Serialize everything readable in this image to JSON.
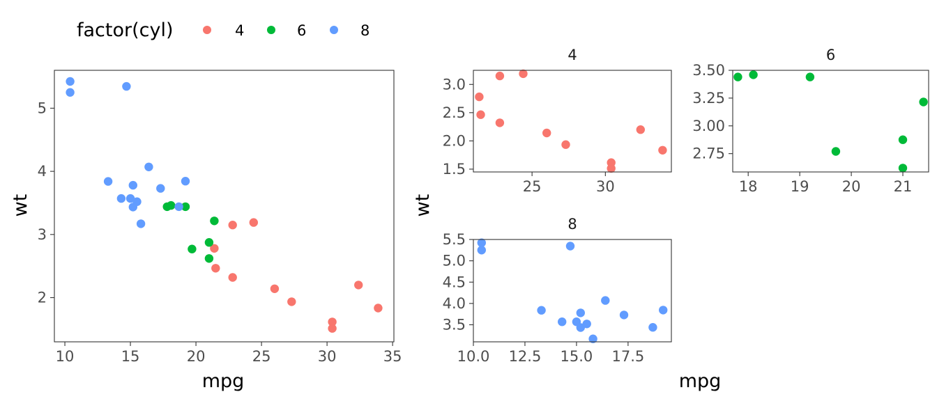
{
  "colors": {
    "4": "#F8766D",
    "6": "#00BA38",
    "8": "#619CFF"
  },
  "legend": {
    "title": "factor(cyl)",
    "items": [
      {
        "label": "4",
        "color": "#F8766D"
      },
      {
        "label": "6",
        "color": "#00BA38"
      },
      {
        "label": "8",
        "color": "#619CFF"
      }
    ],
    "position": "top-left"
  },
  "chart_data": [
    {
      "type": "scatter",
      "panel": "main",
      "strip": "",
      "xlabel": "mpg",
      "ylabel": "wt",
      "xlim": [
        9.2,
        35.1
      ],
      "ylim": [
        1.3,
        5.6
      ],
      "xticks": [
        10,
        15,
        20,
        25,
        30,
        35
      ],
      "yticks": [
        2,
        3,
        4,
        5
      ],
      "xtick_labels": [
        "10",
        "15",
        "20",
        "25",
        "30",
        "35"
      ],
      "ytick_labels": [
        "2",
        "3",
        "4",
        "5"
      ],
      "grid": false,
      "series": [
        {
          "name": "4",
          "color": "#F8766D",
          "points": [
            [
              22.8,
              3.15
            ],
            [
              24.4,
              3.19
            ],
            [
              21.4,
              2.78
            ],
            [
              22.8,
              2.32
            ],
            [
              21.5,
              2.465
            ],
            [
              26.0,
              2.14
            ],
            [
              27.3,
              1.935
            ],
            [
              32.4,
              2.2
            ],
            [
              33.9,
              1.835
            ],
            [
              30.4,
              1.615
            ],
            [
              30.4,
              1.513
            ]
          ]
        },
        {
          "name": "6",
          "color": "#00BA38",
          "points": [
            [
              21.4,
              3.215
            ],
            [
              21.0,
              2.875
            ],
            [
              21.0,
              2.62
            ],
            [
              19.7,
              2.77
            ],
            [
              18.1,
              3.46
            ],
            [
              17.8,
              3.44
            ],
            [
              19.2,
              3.44
            ]
          ]
        },
        {
          "name": "8",
          "color": "#619CFF",
          "points": [
            [
              10.4,
              5.424
            ],
            [
              10.4,
              5.25
            ],
            [
              14.7,
              5.345
            ],
            [
              16.4,
              4.07
            ],
            [
              13.3,
              3.84
            ],
            [
              19.2,
              3.845
            ],
            [
              15.2,
              3.78
            ],
            [
              17.3,
              3.73
            ],
            [
              14.3,
              3.57
            ],
            [
              15.0,
              3.57
            ],
            [
              15.5,
              3.52
            ],
            [
              18.7,
              3.44
            ],
            [
              15.2,
              3.435
            ],
            [
              15.8,
              3.17
            ]
          ]
        }
      ]
    },
    {
      "type": "scatter",
      "panel": "facet-4",
      "strip": "4",
      "xlim": [
        21.0,
        34.5
      ],
      "ylim": [
        1.45,
        3.25
      ],
      "xticks": [
        25,
        30
      ],
      "yticks": [
        1.5,
        2.0,
        2.5,
        3.0
      ],
      "xtick_labels": [
        "25",
        "30"
      ],
      "ytick_labels": [
        "1.5",
        "2.0",
        "2.5",
        "3.0"
      ],
      "grid": false,
      "series": [
        {
          "name": "4",
          "color": "#F8766D",
          "points": [
            [
              22.8,
              3.15
            ],
            [
              24.4,
              3.19
            ],
            [
              21.4,
              2.78
            ],
            [
              21.5,
              2.465
            ],
            [
              22.8,
              2.32
            ],
            [
              26.0,
              2.14
            ],
            [
              27.3,
              1.935
            ],
            [
              32.4,
              2.2
            ],
            [
              33.9,
              1.835
            ],
            [
              30.4,
              1.615
            ],
            [
              30.4,
              1.513
            ]
          ]
        }
      ]
    },
    {
      "type": "scatter",
      "panel": "facet-6",
      "strip": "6",
      "xlim": [
        17.7,
        21.5
      ],
      "ylim": [
        2.585,
        3.5
      ],
      "xticks": [
        18,
        19,
        20,
        21
      ],
      "yticks": [
        2.75,
        3.0,
        3.25,
        3.5
      ],
      "xtick_labels": [
        "18",
        "19",
        "20",
        "21"
      ],
      "ytick_labels": [
        "2.75",
        "3.00",
        "3.25",
        "3.50"
      ],
      "grid": false,
      "series": [
        {
          "name": "6",
          "color": "#00BA38",
          "points": [
            [
              17.8,
              3.44
            ],
            [
              18.1,
              3.46
            ],
            [
              19.2,
              3.44
            ],
            [
              21.4,
              3.215
            ],
            [
              19.7,
              2.77
            ],
            [
              21.0,
              2.875
            ],
            [
              21.0,
              2.62
            ]
          ]
        }
      ]
    },
    {
      "type": "scatter",
      "panel": "facet-8",
      "strip": "8",
      "xlim": [
        10.0,
        19.6
      ],
      "ylim": [
        3.1,
        5.5
      ],
      "xticks": [
        10.0,
        12.5,
        15.0,
        17.5
      ],
      "yticks": [
        3.5,
        4.0,
        4.5,
        5.0,
        5.5
      ],
      "xtick_labels": [
        "10.0",
        "12.5",
        "15.0",
        "17.5"
      ],
      "ytick_labels": [
        "3.5",
        "4.0",
        "4.5",
        "5.0",
        "5.5"
      ],
      "grid": false,
      "series": [
        {
          "name": "8",
          "color": "#619CFF",
          "points": [
            [
              10.4,
              5.424
            ],
            [
              10.4,
              5.25
            ],
            [
              14.7,
              5.345
            ],
            [
              13.3,
              3.84
            ],
            [
              14.3,
              3.57
            ],
            [
              15.0,
              3.57
            ],
            [
              15.2,
              3.78
            ],
            [
              15.2,
              3.435
            ],
            [
              15.5,
              3.52
            ],
            [
              15.8,
              3.17
            ],
            [
              16.4,
              4.07
            ],
            [
              17.3,
              3.73
            ],
            [
              18.7,
              3.44
            ],
            [
              19.2,
              3.845
            ]
          ]
        }
      ]
    }
  ],
  "facet_axes": {
    "xlabel": "mpg",
    "ylabel": "wt"
  }
}
